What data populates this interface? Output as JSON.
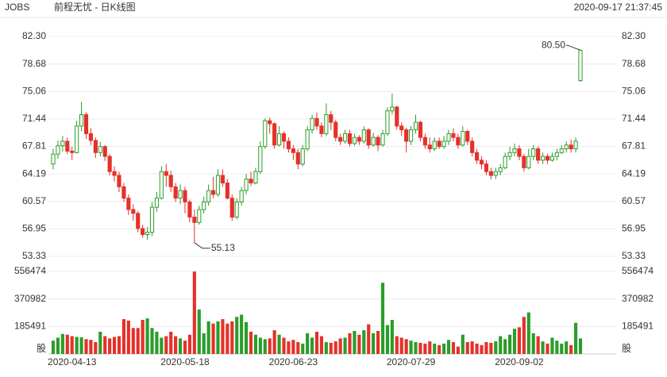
{
  "chart_data": {
    "type": "candlestick",
    "symbol": "JOBS",
    "title": "前程无忧 - 日K线图",
    "timestamp": "2020-09-17 21:37:45",
    "up_color": "#2a9d2a",
    "down_color": "#e4312b",
    "categories": [
      null,
      null,
      null,
      null,
      "2020-04-13",
      null,
      null,
      null,
      null,
      null,
      null,
      null,
      null,
      null,
      null,
      null,
      null,
      null,
      null,
      null,
      null,
      null,
      null,
      null,
      null,
      null,
      null,
      null,
      "2020-05-18",
      null,
      null,
      null,
      null,
      null,
      null,
      null,
      null,
      null,
      null,
      null,
      null,
      null,
      null,
      null,
      null,
      null,
      null,
      null,
      null,
      null,
      null,
      "2020-06-23",
      null,
      null,
      null,
      null,
      null,
      null,
      null,
      null,
      null,
      null,
      null,
      null,
      null,
      null,
      null,
      null,
      null,
      null,
      null,
      null,
      null,
      null,
      null,
      null,
      "2020-07-29",
      null,
      null,
      null,
      null,
      null,
      null,
      null,
      null,
      null,
      null,
      null,
      null,
      null,
      null,
      null,
      null,
      null,
      null,
      null,
      null,
      null,
      null,
      "2020-09-02",
      null,
      null,
      null,
      null,
      null,
      null,
      null,
      null,
      null,
      null,
      null,
      null,
      null
    ],
    "open": [
      65.5,
      66.8,
      67.9,
      68.5,
      67.2,
      67.0,
      70.5,
      72.0,
      69.5,
      68.6,
      67.0,
      67.8,
      66.5,
      64.5,
      64.0,
      62.5,
      61.0,
      59.5,
      59.0,
      57.0,
      56.2,
      56.5,
      59.8,
      61.0,
      64.5,
      64.0,
      62.5,
      61.0,
      62.0,
      60.5,
      58.5,
      57.8,
      59.5,
      60.5,
      62.0,
      61.5,
      64.0,
      63.0,
      61.0,
      58.5,
      60.5,
      62.0,
      63.5,
      63.0,
      64.5,
      67.8,
      71.2,
      70.8,
      68.0,
      69.5,
      68.5,
      67.5,
      67.0,
      65.5,
      67.5,
      70.0,
      71.5,
      70.5,
      69.5,
      72.0,
      71.0,
      69.0,
      68.5,
      69.5,
      68.2,
      69.0,
      68.5,
      70.0,
      68.0,
      69.0,
      68.0,
      69.5,
      72.5,
      73.0,
      70.5,
      70.0,
      68.5,
      70.0,
      71.0,
      69.0,
      68.0,
      67.5,
      68.5,
      67.8,
      68.5,
      69.5,
      69.0,
      68.0,
      69.8,
      68.5,
      67.0,
      66.0,
      65.5,
      64.5,
      64.0,
      64.5,
      65.0,
      66.5,
      67.0,
      67.5,
      66.5,
      65.0,
      66.5,
      67.5,
      66.0,
      66.5,
      66.0,
      66.5,
      67.0,
      67.5,
      68.0,
      67.5,
      76.5
    ],
    "high": [
      67.5,
      68.6,
      69.2,
      69.0,
      67.8,
      71.2,
      73.7,
      72.3,
      70.2,
      69.0,
      68.4,
      68.0,
      66.8,
      65.2,
      64.5,
      63.0,
      61.5,
      60.2,
      59.3,
      57.5,
      57.2,
      60.5,
      61.8,
      65.2,
      65.5,
      64.6,
      63.0,
      62.8,
      62.5,
      60.8,
      59.5,
      60.0,
      61.2,
      62.8,
      63.8,
      64.8,
      64.8,
      63.5,
      61.5,
      61.0,
      62.5,
      64.2,
      64.5,
      65.0,
      68.5,
      71.5,
      71.6,
      71.0,
      70.5,
      69.8,
      69.0,
      68.0,
      67.5,
      68.0,
      70.5,
      72.0,
      72.3,
      71.0,
      73.5,
      72.5,
      71.3,
      69.5,
      70.0,
      70.0,
      69.5,
      69.3,
      70.5,
      70.2,
      69.6,
      69.3,
      70.0,
      73.0,
      74.8,
      73.2,
      71.0,
      70.3,
      70.5,
      72.0,
      71.2,
      69.5,
      69.0,
      69.0,
      69.0,
      69.2,
      70.0,
      70.2,
      69.5,
      70.5,
      70.0,
      69.0,
      67.5,
      66.5,
      66.0,
      65.0,
      65.0,
      65.5,
      67.0,
      67.8,
      68.2,
      68.0,
      66.8,
      67.5,
      68.0,
      67.8,
      67.0,
      66.8,
      67.0,
      67.5,
      68.0,
      68.5,
      68.7,
      69.0,
      80.5
    ],
    "low": [
      64.8,
      66.2,
      67.1,
      66.8,
      66.0,
      66.9,
      69.8,
      68.8,
      68.0,
      66.3,
      66.5,
      65.9,
      64.0,
      63.2,
      61.8,
      60.5,
      58.8,
      58.0,
      56.5,
      55.8,
      55.5,
      56.0,
      59.2,
      60.8,
      62.5,
      61.8,
      60.5,
      60.2,
      59.0,
      57.8,
      55.13,
      57.5,
      59.0,
      60.0,
      61.0,
      61.2,
      62.5,
      60.8,
      58.0,
      58.2,
      60.0,
      61.5,
      62.6,
      62.8,
      64.2,
      67.5,
      69.5,
      67.5,
      67.8,
      67.5,
      67.0,
      66.0,
      64.8,
      65.2,
      67.2,
      69.5,
      70.0,
      69.0,
      69.2,
      70.0,
      68.5,
      68.0,
      68.2,
      67.8,
      67.9,
      68.0,
      68.2,
      67.5,
      67.8,
      67.2,
      67.8,
      69.2,
      72.0,
      70.0,
      69.2,
      67.0,
      68.0,
      69.5,
      68.5,
      67.5,
      67.0,
      67.2,
      67.5,
      67.5,
      68.0,
      68.5,
      67.5,
      67.8,
      68.0,
      66.5,
      65.5,
      64.8,
      64.0,
      63.5,
      63.5,
      64.0,
      64.8,
      66.0,
      66.5,
      66.0,
      64.5,
      64.8,
      66.0,
      65.5,
      65.5,
      65.5,
      65.8,
      66.0,
      66.8,
      67.0,
      67.0,
      67.0,
      76.3
    ],
    "close": [
      66.8,
      67.9,
      68.5,
      67.2,
      67.0,
      70.5,
      72.0,
      69.5,
      68.6,
      67.0,
      67.8,
      66.5,
      64.5,
      64.0,
      62.5,
      61.0,
      59.5,
      59.0,
      57.0,
      56.2,
      56.5,
      59.8,
      61.0,
      64.5,
      64.0,
      62.5,
      61.0,
      62.0,
      60.5,
      58.5,
      57.8,
      59.5,
      60.5,
      62.0,
      61.5,
      64.0,
      63.0,
      61.0,
      58.5,
      60.5,
      62.0,
      63.5,
      63.0,
      64.5,
      67.8,
      71.2,
      70.8,
      68.0,
      69.5,
      68.5,
      67.5,
      67.0,
      65.5,
      67.5,
      70.0,
      71.5,
      70.5,
      69.5,
      72.0,
      71.0,
      69.0,
      68.5,
      69.5,
      68.2,
      69.0,
      68.5,
      70.0,
      68.0,
      69.0,
      68.0,
      69.5,
      72.5,
      73.0,
      70.5,
      70.0,
      68.5,
      70.0,
      71.0,
      69.0,
      68.0,
      67.5,
      68.5,
      67.8,
      68.5,
      69.5,
      69.0,
      68.0,
      69.8,
      68.5,
      67.0,
      66.0,
      65.5,
      64.5,
      64.0,
      64.5,
      65.0,
      66.5,
      67.0,
      67.5,
      66.5,
      65.0,
      66.5,
      67.5,
      66.0,
      66.5,
      66.0,
      66.5,
      67.0,
      67.5,
      68.0,
      67.5,
      68.5,
      80.5
    ],
    "volume": [
      90000,
      110000,
      135000,
      130000,
      120000,
      115000,
      112000,
      100000,
      95000,
      80000,
      150000,
      120000,
      105000,
      115000,
      120000,
      235000,
      225000,
      175000,
      175000,
      230000,
      240000,
      175000,
      150000,
      110000,
      120000,
      150000,
      120000,
      105000,
      90000,
      130000,
      556000,
      300000,
      140000,
      220000,
      205000,
      220000,
      235000,
      205000,
      220000,
      250000,
      265000,
      215000,
      150000,
      130000,
      110000,
      100000,
      105000,
      160000,
      130000,
      110000,
      85000,
      95000,
      80000,
      70000,
      140000,
      110000,
      150000,
      120000,
      80000,
      75000,
      85000,
      105000,
      110000,
      140000,
      155000,
      130000,
      160000,
      200000,
      140000,
      155000,
      480000,
      195000,
      230000,
      120000,
      110000,
      100000,
      90000,
      80000,
      75000,
      70000,
      85000,
      70000,
      60000,
      70000,
      95000,
      80000,
      50000,
      130000,
      80000,
      85000,
      70000,
      60000,
      80000,
      75000,
      85000,
      120000,
      100000,
      130000,
      170000,
      180000,
      250000,
      280000,
      140000,
      120000,
      85000,
      70000,
      110000,
      90000,
      70000,
      85000,
      60000,
      210000,
      105000
    ],
    "ylim": [
      53.33,
      82.3
    ],
    "yticks": [
      {
        "value": 82.3,
        "label": "82.30"
      },
      78.68,
      75.06,
      71.44,
      67.81,
      64.19,
      60.57,
      56.95,
      53.33
    ],
    "volume_ylim": [
      0,
      556474
    ],
    "volume_yticks": [
      185491,
      370982,
      556474
    ],
    "volume_unit": "股",
    "annotations": [
      {
        "value": 80.5,
        "label": "80.50"
      },
      {
        "value": 55.13,
        "label": "55.13"
      }
    ]
  }
}
